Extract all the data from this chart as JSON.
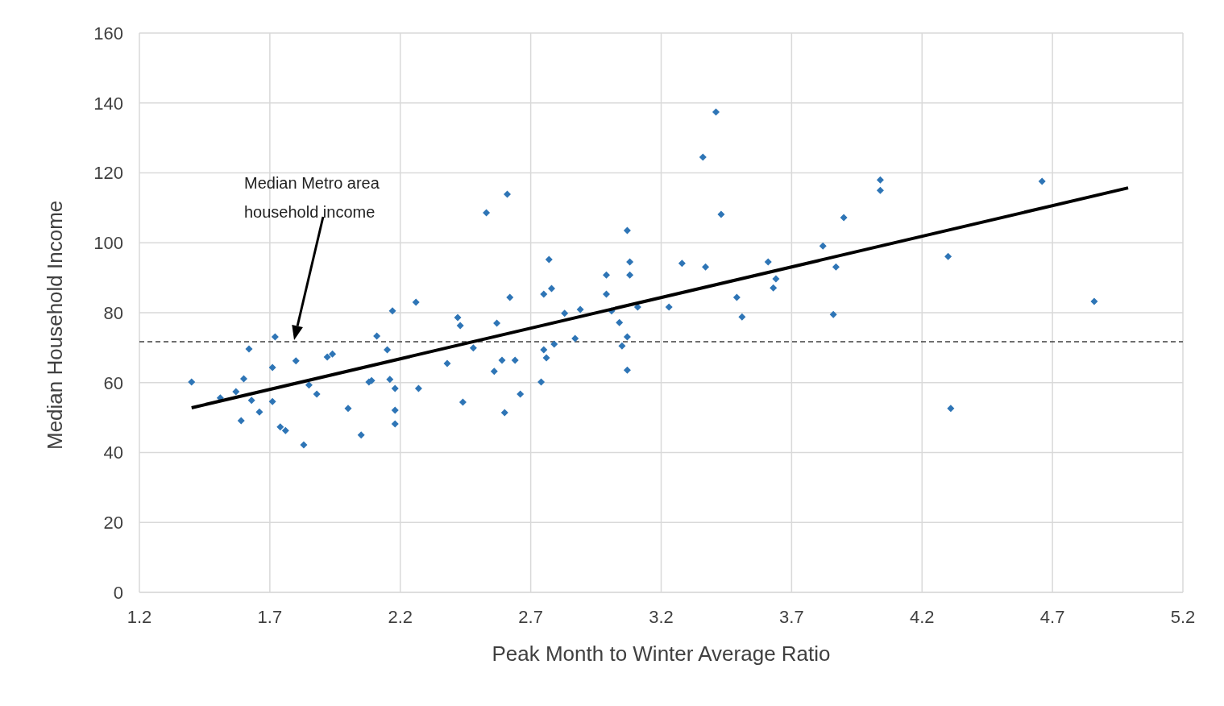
{
  "chart_data": {
    "type": "scatter",
    "xlabel": "Peak Month to Winter Average Ratio",
    "ylabel": "Median Household Income",
    "xlim": [
      1.2,
      5.2
    ],
    "xticks": [
      1.2,
      1.7,
      2.2,
      2.7,
      3.2,
      3.7,
      4.2,
      4.7,
      5.2
    ],
    "ylim": [
      0,
      160
    ],
    "yticks": [
      0,
      20,
      40,
      60,
      80,
      100,
      120,
      140,
      160
    ],
    "grid": true,
    "series": [
      {
        "type": "scatter",
        "color": "#2e75b6",
        "marker": "diamond",
        "x": [
          1.4,
          1.51,
          1.57,
          1.6,
          1.59,
          1.62,
          1.63,
          1.66,
          1.71,
          1.71,
          1.72,
          1.74,
          1.76,
          1.8,
          1.83,
          1.85,
          1.88,
          1.92,
          1.94,
          2.0,
          2.05,
          2.08,
          2.09,
          2.11,
          2.15,
          2.16,
          2.17,
          2.18,
          2.18,
          2.18,
          2.26,
          2.27,
          2.38,
          2.42,
          2.43,
          2.44,
          2.48,
          2.53,
          2.56,
          2.57,
          2.59,
          2.6,
          2.61,
          2.62,
          2.64,
          2.66,
          2.74,
          2.75,
          2.76,
          2.75,
          2.77,
          2.78,
          2.79,
          2.83,
          2.87,
          2.89,
          2.99,
          2.99,
          3.01,
          3.04,
          3.05,
          3.07,
          3.07,
          3.07,
          3.08,
          3.08,
          3.11,
          3.23,
          3.28,
          3.36,
          3.37,
          3.41,
          3.43,
          3.49,
          3.51,
          3.61,
          3.63,
          3.64,
          3.82,
          3.86,
          3.87,
          3.9,
          4.04,
          4.04,
          4.3,
          4.31,
          4.66,
          4.86
        ],
        "values": [
          60.2,
          55.6,
          57.4,
          61.1,
          49.1,
          69.6,
          54.9,
          51.6,
          54.6,
          64.3,
          73.1,
          47.3,
          46.3,
          66.2,
          42.2,
          59.3,
          56.7,
          67.3,
          68.2,
          52.6,
          45.0,
          60.2,
          60.6,
          73.3,
          69.4,
          60.9,
          80.5,
          58.3,
          52.1,
          48.2,
          83.0,
          58.3,
          65.5,
          78.6,
          76.3,
          54.4,
          69.9,
          108.6,
          63.2,
          77.0,
          66.4,
          51.4,
          113.9,
          84.4,
          66.4,
          56.7,
          60.2,
          69.4,
          67.1,
          85.3,
          95.2,
          86.9,
          71.0,
          79.8,
          72.6,
          80.9,
          90.8,
          85.3,
          80.5,
          77.2,
          70.5,
          73.1,
          103.5,
          63.6,
          94.5,
          90.8,
          81.6,
          81.6,
          94.1,
          124.5,
          93.1,
          137.4,
          108.1,
          84.4,
          78.8,
          94.5,
          87.1,
          89.7,
          99.1,
          79.5,
          93.1,
          107.2,
          115.0,
          118.0,
          96.1,
          52.6,
          117.6,
          83.2
        ]
      },
      {
        "type": "line",
        "color": "#000000",
        "marker": "none",
        "x": [
          1.4,
          4.99
        ],
        "values": [
          52.8,
          115.7
        ]
      }
    ],
    "ref_lines": [
      {
        "axis": "y",
        "value": 71.7,
        "label": "Median Metro area household income",
        "color": "#404040",
        "line_style": "dashed"
      }
    ]
  }
}
